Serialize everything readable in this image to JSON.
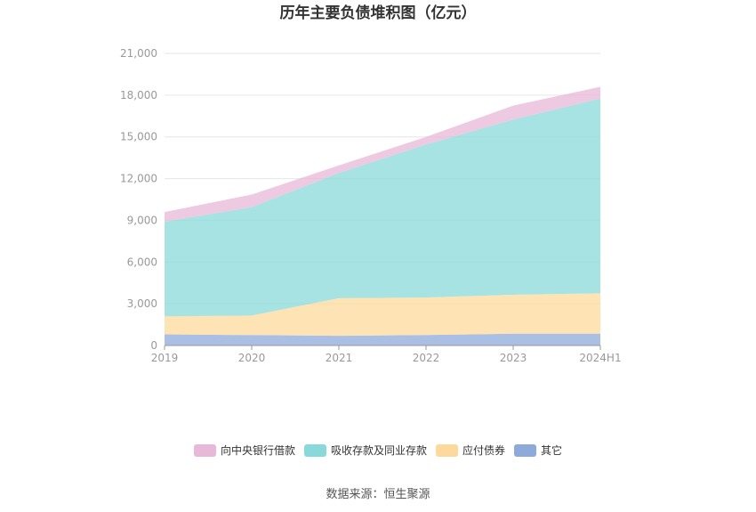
{
  "chart_data": {
    "type": "area",
    "stacked": true,
    "title": "历年主要负债堆积图（亿元）",
    "categories": [
      "2019",
      "2020",
      "2021",
      "2022",
      "2023",
      "2024H1"
    ],
    "y_ticks": [
      "0",
      "3,000",
      "6,000",
      "9,000",
      "12,000",
      "15,000",
      "18,000",
      "21,000"
    ],
    "ylim": [
      0,
      21000
    ],
    "grid": true,
    "legend_position": "bottom",
    "series": [
      {
        "name": "其它",
        "color": "#8eaadb",
        "values": [
          800,
          750,
          700,
          750,
          850,
          850
        ]
      },
      {
        "name": "应付债券",
        "color": "#fdd99b",
        "values": [
          1300,
          1400,
          2700,
          2700,
          2800,
          2900
        ]
      },
      {
        "name": "吸收存款及同业存款",
        "color": "#89d9da",
        "values": [
          6800,
          7800,
          9000,
          11000,
          12600,
          14000
        ]
      },
      {
        "name": "向中央银行借款",
        "color": "#e8b8d8",
        "values": [
          700,
          900,
          550,
          550,
          1000,
          850
        ]
      }
    ],
    "legend_order": [
      "向中央银行借款",
      "吸收存款及同业存款",
      "应付债券",
      "其它"
    ]
  },
  "source": "数据来源：恒生聚源"
}
